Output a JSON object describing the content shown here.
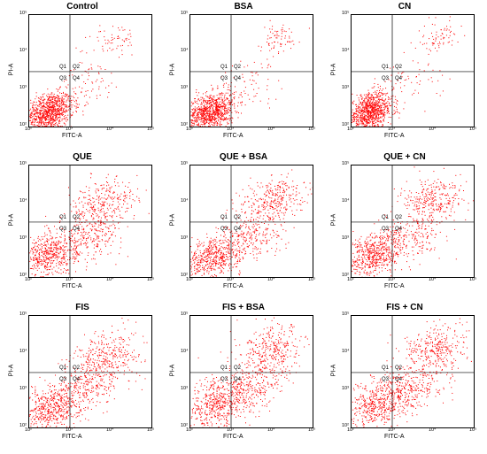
{
  "figure": {
    "xlabel": "FITC-A",
    "ylabel": "PI-A",
    "x_ticks": [
      "10²",
      "10³",
      "10⁴",
      "10⁵"
    ],
    "y_ticks": [
      "10²",
      "10³",
      "10⁴",
      "10⁵"
    ],
    "quadrant_labels": [
      "Q1",
      "Q2",
      "Q3",
      "Q4"
    ],
    "point_color": "#ff0000"
  },
  "chart_data": [
    {
      "type": "scatter",
      "title": "Control",
      "xlabel": "FITC-A",
      "ylabel": "PI-A",
      "xscale": "log",
      "yscale": "log",
      "xlim": [
        100,
        100000
      ],
      "ylim": [
        100,
        100000
      ],
      "gate": {
        "x": 1000,
        "y": 3000
      },
      "populations": [
        {
          "name": "",
          "x_center": 300,
          "y_center": 250,
          "x_spread_decades": 0.3,
          "y_spread_decades": 0.25,
          "fraction": 0.88
        },
        {
          "name": "",
          "x_center": 12000,
          "y_center": 20000,
          "x_spread_decades": 0.3,
          "y_spread_decades": 0.25,
          "fraction": 0.06
        },
        {
          "name": "",
          "x_center": 3000,
          "y_center": 1500,
          "x_spread_decades": 0.4,
          "y_spread_decades": 0.3,
          "fraction": 0.06
        }
      ]
    },
    {
      "type": "scatter",
      "title": "BSA",
      "xlabel": "FITC-A",
      "ylabel": "PI-A",
      "xscale": "log",
      "yscale": "log",
      "xlim": [
        100,
        100000
      ],
      "ylim": [
        100,
        100000
      ],
      "gate": {
        "x": 1000,
        "y": 3000
      },
      "populations": [
        {
          "name": "",
          "x_center": 300,
          "y_center": 250,
          "x_spread_decades": 0.3,
          "y_spread_decades": 0.25,
          "fraction": 0.87
        },
        {
          "name": "",
          "x_center": 12000,
          "y_center": 20000,
          "x_spread_decades": 0.3,
          "y_spread_decades": 0.25,
          "fraction": 0.07
        },
        {
          "name": "",
          "x_center": 3000,
          "y_center": 1500,
          "x_spread_decades": 0.4,
          "y_spread_decades": 0.3,
          "fraction": 0.06
        }
      ]
    },
    {
      "type": "scatter",
      "title": "CN",
      "xlabel": "FITC-A",
      "ylabel": "PI-A",
      "xscale": "log",
      "yscale": "log",
      "xlim": [
        100,
        100000
      ],
      "ylim": [
        100,
        100000
      ],
      "gate": {
        "x": 1000,
        "y": 3000
      },
      "populations": [
        {
          "name": "",
          "x_center": 280,
          "y_center": 250,
          "x_spread_decades": 0.28,
          "y_spread_decades": 0.25,
          "fraction": 0.88
        },
        {
          "name": "",
          "x_center": 13000,
          "y_center": 25000,
          "x_spread_decades": 0.25,
          "y_spread_decades": 0.2,
          "fraction": 0.07
        },
        {
          "name": "",
          "x_center": 3000,
          "y_center": 1500,
          "x_spread_decades": 0.4,
          "y_spread_decades": 0.3,
          "fraction": 0.05
        }
      ]
    },
    {
      "type": "scatter",
      "title": "QUE",
      "xlabel": "FITC-A",
      "ylabel": "PI-A",
      "xscale": "log",
      "yscale": "log",
      "xlim": [
        100,
        100000
      ],
      "ylim": [
        100,
        100000
      ],
      "gate": {
        "x": 1000,
        "y": 3000
      },
      "populations": [
        {
          "name": "",
          "x_center": 300,
          "y_center": 400,
          "x_spread_decades": 0.35,
          "y_spread_decades": 0.3,
          "fraction": 0.5
        },
        {
          "name": "",
          "x_center": 6000,
          "y_center": 8000,
          "x_spread_decades": 0.45,
          "y_spread_decades": 0.35,
          "fraction": 0.3
        },
        {
          "name": "",
          "x_center": 3000,
          "y_center": 1200,
          "x_spread_decades": 0.4,
          "y_spread_decades": 0.3,
          "fraction": 0.2
        }
      ]
    },
    {
      "type": "scatter",
      "title": "QUE + BSA",
      "xlabel": "FITC-A",
      "ylabel": "PI-A",
      "xscale": "log",
      "yscale": "log",
      "xlim": [
        100,
        100000
      ],
      "ylim": [
        100,
        100000
      ],
      "gate": {
        "x": 1000,
        "y": 3000
      },
      "populations": [
        {
          "name": "",
          "x_center": 350,
          "y_center": 350,
          "x_spread_decades": 0.35,
          "y_spread_decades": 0.3,
          "fraction": 0.5
        },
        {
          "name": "",
          "x_center": 10000,
          "y_center": 12000,
          "x_spread_decades": 0.4,
          "y_spread_decades": 0.3,
          "fraction": 0.3
        },
        {
          "name": "",
          "x_center": 3000,
          "y_center": 1200,
          "x_spread_decades": 0.4,
          "y_spread_decades": 0.3,
          "fraction": 0.2
        }
      ]
    },
    {
      "type": "scatter",
      "title": "QUE + CN",
      "xlabel": "FITC-A",
      "ylabel": "PI-A",
      "xscale": "log",
      "yscale": "log",
      "xlim": [
        100,
        100000
      ],
      "ylim": [
        100,
        100000
      ],
      "gate": {
        "x": 1000,
        "y": 3000
      },
      "populations": [
        {
          "name": "",
          "x_center": 350,
          "y_center": 400,
          "x_spread_decades": 0.35,
          "y_spread_decades": 0.3,
          "fraction": 0.52
        },
        {
          "name": "",
          "x_center": 10000,
          "y_center": 12000,
          "x_spread_decades": 0.4,
          "y_spread_decades": 0.3,
          "fraction": 0.28
        },
        {
          "name": "",
          "x_center": 3000,
          "y_center": 1200,
          "x_spread_decades": 0.4,
          "y_spread_decades": 0.3,
          "fraction": 0.2
        }
      ]
    },
    {
      "type": "scatter",
      "title": "FIS",
      "xlabel": "FITC-A",
      "ylabel": "PI-A",
      "xscale": "log",
      "yscale": "log",
      "xlim": [
        100,
        100000
      ],
      "ylim": [
        100,
        100000
      ],
      "gate": {
        "x": 1000,
        "y": 3000
      },
      "populations": [
        {
          "name": "",
          "x_center": 350,
          "y_center": 350,
          "x_spread_decades": 0.35,
          "y_spread_decades": 0.3,
          "fraction": 0.48
        },
        {
          "name": "",
          "x_center": 8000,
          "y_center": 8000,
          "x_spread_decades": 0.45,
          "y_spread_decades": 0.35,
          "fraction": 0.32
        },
        {
          "name": "",
          "x_center": 3000,
          "y_center": 1200,
          "x_spread_decades": 0.4,
          "y_spread_decades": 0.3,
          "fraction": 0.2
        }
      ]
    },
    {
      "type": "scatter",
      "title": "FIS + BSA",
      "xlabel": "FITC-A",
      "ylabel": "PI-A",
      "xscale": "log",
      "yscale": "log",
      "xlim": [
        100,
        100000
      ],
      "ylim": [
        100,
        100000
      ],
      "gate": {
        "x": 1000,
        "y": 3000
      },
      "populations": [
        {
          "name": "",
          "x_center": 450,
          "y_center": 450,
          "x_spread_decades": 0.4,
          "y_spread_decades": 0.35,
          "fraction": 0.48
        },
        {
          "name": "",
          "x_center": 10000,
          "y_center": 10000,
          "x_spread_decades": 0.4,
          "y_spread_decades": 0.35,
          "fraction": 0.32
        },
        {
          "name": "",
          "x_center": 3000,
          "y_center": 1200,
          "x_spread_decades": 0.4,
          "y_spread_decades": 0.3,
          "fraction": 0.2
        }
      ]
    },
    {
      "type": "scatter",
      "title": "FIS + CN",
      "xlabel": "FITC-A",
      "ylabel": "PI-A",
      "xscale": "log",
      "yscale": "log",
      "xlim": [
        100,
        100000
      ],
      "ylim": [
        100,
        100000
      ],
      "gate": {
        "x": 1000,
        "y": 3000
      },
      "populations": [
        {
          "name": "",
          "x_center": 500,
          "y_center": 450,
          "x_spread_decades": 0.4,
          "y_spread_decades": 0.35,
          "fraction": 0.48
        },
        {
          "name": "",
          "x_center": 12000,
          "y_center": 12000,
          "x_spread_decades": 0.4,
          "y_spread_decades": 0.35,
          "fraction": 0.32
        },
        {
          "name": "",
          "x_center": 3000,
          "y_center": 1200,
          "x_spread_decades": 0.4,
          "y_spread_decades": 0.3,
          "fraction": 0.2
        }
      ]
    }
  ]
}
